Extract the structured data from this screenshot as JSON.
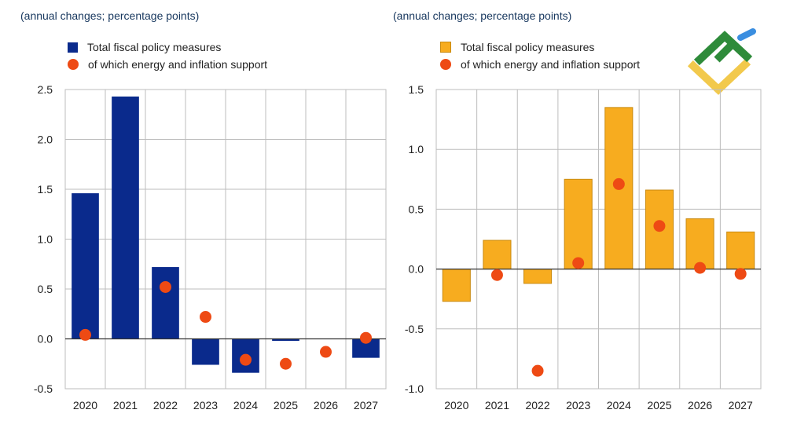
{
  "colors": {
    "left_bar": "#0a2a8c",
    "right_bar": "#f7ac1f",
    "right_bar_edge": "#c98a10",
    "dot": "#ee4a14",
    "grid": "#bdbdbd",
    "text": "#222222",
    "subtitle": "#17375e"
  },
  "logo": {
    "name": "logo-icon"
  },
  "chart_data": [
    {
      "type": "bar",
      "subtitle": "(annual changes; percentage points)",
      "categories": [
        "2020",
        "2021",
        "2022",
        "2023",
        "2024",
        "2025",
        "2026",
        "2027"
      ],
      "series": [
        {
          "name": "Total fiscal policy measures",
          "kind": "bar",
          "values": [
            1.46,
            2.43,
            0.72,
            -0.26,
            -0.34,
            -0.02,
            0.0,
            -0.19
          ]
        },
        {
          "name": "of which energy and inflation support",
          "kind": "point",
          "values": [
            0.04,
            null,
            0.52,
            0.22,
            -0.21,
            -0.25,
            -0.13,
            0.01
          ]
        }
      ],
      "ylim": [
        -0.5,
        2.5
      ],
      "yticks": [
        -0.5,
        0.0,
        0.5,
        1.0,
        1.5,
        2.0,
        2.5
      ],
      "ytick_labels": [
        "-0.5",
        "0.0",
        "0.5",
        "1.0",
        "1.5",
        "2.0",
        "2.5"
      ],
      "grid": true,
      "legend": "top-left"
    },
    {
      "type": "bar",
      "subtitle": "(annual changes; percentage points)",
      "categories": [
        "2020",
        "2021",
        "2022",
        "2023",
        "2024",
        "2025",
        "2026",
        "2027"
      ],
      "series": [
        {
          "name": "Total fiscal policy measures",
          "kind": "bar",
          "values": [
            -0.27,
            0.24,
            -0.12,
            0.75,
            1.35,
            0.66,
            0.42,
            0.31
          ]
        },
        {
          "name": "of which energy and inflation support",
          "kind": "point",
          "values": [
            null,
            -0.05,
            -0.85,
            0.05,
            0.71,
            0.36,
            0.01,
            -0.04
          ]
        }
      ],
      "ylim": [
        -1.0,
        1.5
      ],
      "yticks": [
        -1.0,
        -0.5,
        0.0,
        0.5,
        1.0,
        1.5
      ],
      "ytick_labels": [
        "-1.0",
        "-0.5",
        "0.0",
        "0.5",
        "1.0",
        "1.5"
      ],
      "grid": true,
      "legend": "top-left"
    }
  ]
}
